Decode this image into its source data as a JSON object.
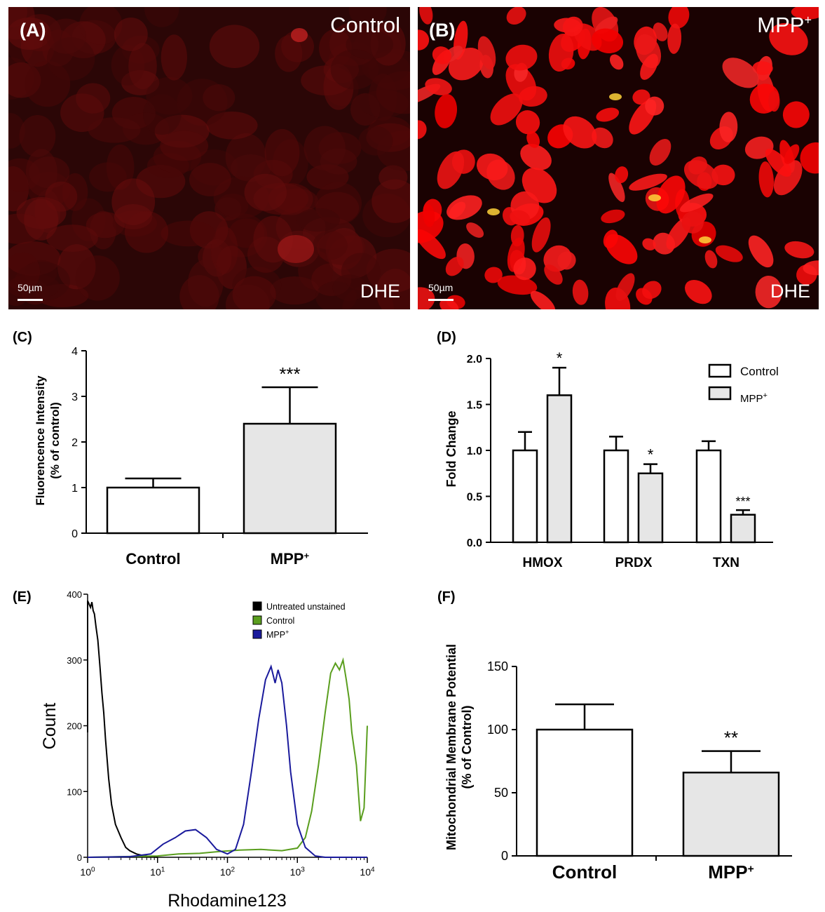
{
  "panels": {
    "a": {
      "letter": "(A)",
      "condition": "Control",
      "stain": "DHE",
      "scale": "50µm"
    },
    "b": {
      "letter": "(B)",
      "condition": "MPP",
      "condition_sup": "+",
      "stain": "DHE",
      "scale": "50µm"
    }
  },
  "colors": {
    "bar_control": "#ffffff",
    "bar_mpp": "#e6e6e6",
    "unstained": "#000000",
    "control_line": "#5a9e1e",
    "mpp_line": "#1a1a9c"
  },
  "chart_data": [
    {
      "id": "C",
      "panel_label": "(C)",
      "type": "bar",
      "categories": [
        "Control",
        "MPP"
      ],
      "category_sups": [
        "",
        "+"
      ],
      "values": [
        1.0,
        2.4
      ],
      "errors": [
        0.2,
        0.8
      ],
      "significance": [
        "",
        "***"
      ],
      "ylabel": "Fluorencence Intensity",
      "ylabel2": "(% of control)",
      "ylim": [
        0,
        4
      ],
      "yticks": [
        "0",
        "1",
        "2",
        "3",
        "4"
      ]
    },
    {
      "id": "D",
      "panel_label": "(D)",
      "type": "bar",
      "categories": [
        "HMOX",
        "PRDX",
        "TXN"
      ],
      "series": [
        {
          "name": "Control",
          "values": [
            1.0,
            1.0,
            1.0
          ],
          "errors": [
            0.2,
            0.15,
            0.1
          ],
          "significance": [
            "",
            "",
            ""
          ]
        },
        {
          "name": "MPP",
          "name_sup": "+",
          "values": [
            1.6,
            0.75,
            0.3
          ],
          "errors": [
            0.3,
            0.1,
            0.05
          ],
          "significance": [
            "*",
            "*",
            "***"
          ]
        }
      ],
      "ylabel": "Fold Change",
      "ylim": [
        0,
        2.0
      ],
      "yticks": [
        "0.0",
        "0.5",
        "1.0",
        "1.5",
        "2.0"
      ],
      "legend": "top-right"
    },
    {
      "id": "E",
      "panel_label": "(E)",
      "type": "line",
      "xlabel": "Rhodamine123",
      "ylabel": "Count",
      "xscale": "log",
      "xlim": [
        1,
        10000
      ],
      "ylim": [
        0,
        400
      ],
      "xticks": [
        {
          "base": "10",
          "exp": "0"
        },
        {
          "base": "10",
          "exp": "1"
        },
        {
          "base": "10",
          "exp": "2"
        },
        {
          "base": "10",
          "exp": "3"
        },
        {
          "base": "10",
          "exp": "4"
        }
      ],
      "yticks": [
        "0",
        "100",
        "200",
        "300",
        "400"
      ],
      "series": [
        {
          "name": "Untreated unstained",
          "x": [
            0.75,
            0.78,
            0.82,
            0.86,
            0.9,
            0.95,
            1.0,
            1.05,
            1.1,
            1.15,
            1.2,
            1.25,
            1.32,
            1.4,
            1.5,
            1.6,
            1.7,
            1.8,
            2.0,
            2.2,
            2.5,
            3.0,
            3.5,
            4.0,
            5.0,
            6.0,
            8.0,
            10.0
          ],
          "y": [
            190,
            260,
            330,
            360,
            375,
            385,
            390,
            385,
            380,
            388,
            375,
            370,
            350,
            330,
            290,
            250,
            220,
            180,
            120,
            80,
            50,
            30,
            15,
            10,
            5,
            3,
            1,
            0
          ]
        },
        {
          "name": "Control",
          "x": [
            1,
            10,
            20,
            40,
            80,
            150,
            300,
            600,
            1000,
            1300,
            1600,
            2000,
            2500,
            3000,
            3500,
            4000,
            4500,
            5000,
            5500,
            6000,
            7000,
            8000,
            9000,
            10000
          ],
          "y": [
            0,
            2,
            5,
            6,
            9,
            11,
            12,
            10,
            14,
            30,
            70,
            140,
            220,
            280,
            295,
            285,
            300,
            270,
            240,
            190,
            140,
            55,
            75,
            200
          ]
        },
        {
          "name": "MPP",
          "name_sup": "+",
          "x": [
            1,
            4,
            8,
            12,
            18,
            25,
            35,
            50,
            70,
            100,
            130,
            170,
            220,
            280,
            350,
            420,
            480,
            530,
            600,
            700,
            800,
            1000,
            1300,
            1800,
            2500,
            10000
          ],
          "y": [
            0,
            1,
            5,
            20,
            30,
            40,
            42,
            30,
            12,
            5,
            12,
            50,
            130,
            210,
            270,
            290,
            265,
            285,
            265,
            200,
            130,
            50,
            15,
            2,
            0,
            0
          ]
        }
      ],
      "legend": "top-right"
    },
    {
      "id": "F",
      "panel_label": "(F)",
      "type": "bar",
      "categories": [
        "Control",
        "MPP"
      ],
      "category_sups": [
        "",
        "+"
      ],
      "values": [
        100,
        66
      ],
      "errors": [
        20,
        17
      ],
      "significance": [
        "",
        "**"
      ],
      "ylabel": "Mitochondrial Membrane Potential",
      "ylabel2": "(% of Control)",
      "ylim": [
        0,
        150
      ],
      "yticks": [
        "0",
        "50",
        "100",
        "150"
      ]
    }
  ]
}
